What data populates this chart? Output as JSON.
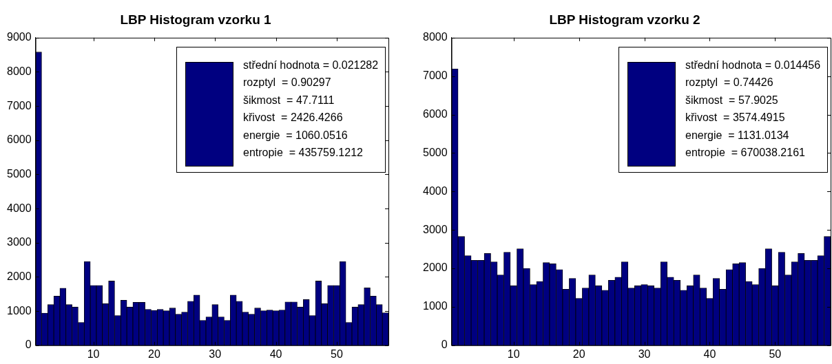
{
  "chart_data": [
    {
      "type": "histogram",
      "title": "LBP Histogram vzorku 1",
      "bins": [
        0.5,
        1.5,
        2.5,
        3.5,
        4.5,
        5.5,
        6.5,
        7.5,
        8.5,
        9.5,
        10.5,
        11.5,
        12.5,
        13.5,
        14.5,
        15.5,
        16.5,
        17.5,
        18.5,
        19.5,
        20.5,
        21.5,
        22.5,
        23.5,
        24.5,
        25.5,
        26.5,
        27.5,
        28.5,
        29.5,
        30.5,
        31.5,
        32.5,
        33.5,
        34.5,
        35.5,
        36.5,
        37.5,
        38.5,
        39.5,
        40.5,
        41.5,
        42.5,
        43.5,
        44.5,
        45.5,
        46.5,
        47.5,
        48.5,
        49.5,
        50.5,
        51.5,
        52.5,
        53.5,
        54.5,
        55.5,
        56.5,
        57.5,
        58.5
      ],
      "series": [
        {
          "name": "střední hodnota = 0.021282\nrozptyl  = 0.90297\nšikmost  = 47.7111\nkřivost  = 2426.4266\nenergie  = 1060.0516\nentropie  = 435759.1212",
          "color": "#000080",
          "values": [
            8580,
            940,
            1190,
            1440,
            1670,
            1190,
            1120,
            670,
            2450,
            1750,
            1750,
            1220,
            1880,
            870,
            1320,
            1120,
            1260,
            1260,
            1050,
            1020,
            1050,
            1010,
            1090,
            910,
            970,
            1290,
            1470,
            730,
            830,
            1190,
            830,
            730,
            1470,
            1290,
            970,
            910,
            1090,
            1010,
            1030,
            1010,
            1030,
            1270,
            1270,
            1120,
            1340,
            870,
            1880,
            1220,
            1750,
            1750,
            2450,
            670,
            1120,
            1190,
            1680,
            1440,
            1190,
            950
          ]
        }
      ],
      "xlim": [
        0.5,
        58.5
      ],
      "xticks": [
        10,
        20,
        30,
        40,
        50
      ],
      "ylim": [
        0,
        9000
      ],
      "yticks": [
        0,
        1000,
        2000,
        3000,
        4000,
        5000,
        6000,
        7000,
        8000,
        9000
      ],
      "grid": false,
      "legend": "top right"
    },
    {
      "type": "histogram",
      "title": "LBP Histogram vzorku 2",
      "bins": [
        0.5,
        1.5,
        2.5,
        3.5,
        4.5,
        5.5,
        6.5,
        7.5,
        8.5,
        9.5,
        10.5,
        11.5,
        12.5,
        13.5,
        14.5,
        15.5,
        16.5,
        17.5,
        18.5,
        19.5,
        20.5,
        21.5,
        22.5,
        23.5,
        24.5,
        25.5,
        26.5,
        27.5,
        28.5,
        29.5,
        30.5,
        31.5,
        32.5,
        33.5,
        34.5,
        35.5,
        36.5,
        37.5,
        38.5,
        39.5,
        40.5,
        41.5,
        42.5,
        43.5,
        44.5,
        45.5,
        46.5,
        47.5,
        48.5,
        49.5,
        50.5,
        51.5,
        52.5,
        53.5,
        54.5,
        55.5,
        56.5,
        57.5,
        58.5
      ],
      "series": [
        {
          "name": "střední hodnota = 0.014456\nrozptyl  = 0.74426\nšikmost  = 57.9025\nkřivost  = 3574.4915\nenergie  = 1131.0134\nentropie  = 670038.2161",
          "color": "#000080",
          "values": [
            7190,
            2830,
            2330,
            2210,
            2210,
            2390,
            2170,
            1830,
            2420,
            1550,
            2510,
            2000,
            1580,
            1660,
            2150,
            2120,
            1970,
            1460,
            1740,
            1220,
            1490,
            1830,
            1550,
            1430,
            1690,
            1770,
            2170,
            1490,
            1550,
            1580,
            1550,
            1490,
            2170,
            1770,
            1690,
            1430,
            1550,
            1830,
            1490,
            1220,
            1740,
            1460,
            1970,
            2120,
            2150,
            1660,
            1580,
            2000,
            2510,
            1550,
            2420,
            1830,
            2170,
            2390,
            2210,
            2210,
            2330,
            2830
          ]
        }
      ],
      "xlim": [
        0.5,
        58.5
      ],
      "xticks": [
        10,
        20,
        30,
        40,
        50
      ],
      "ylim": [
        0,
        8000
      ],
      "yticks": [
        0,
        1000,
        2000,
        3000,
        4000,
        5000,
        6000,
        7000,
        8000
      ],
      "grid": false,
      "legend": "top right"
    }
  ]
}
